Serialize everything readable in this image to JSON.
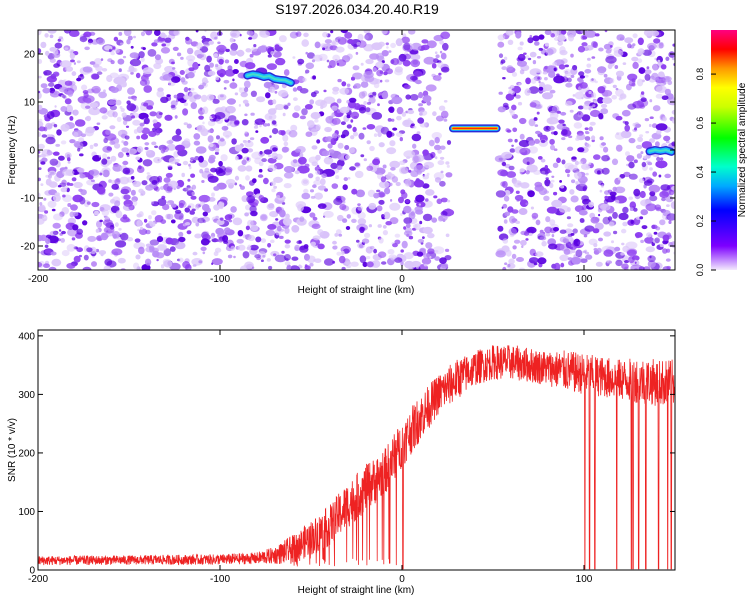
{
  "title": "S197.2026.034.20.40.R19",
  "chart_data": [
    {
      "type": "heatmap",
      "name": "spectrogram",
      "xlabel": "Height of straight line (km)",
      "ylabel": "Frequency (Hz)",
      "xlim": [
        -200,
        150
      ],
      "ylim": [
        -25,
        25
      ],
      "xticks": [
        -200,
        -100,
        0,
        100
      ],
      "yticks": [
        20,
        10,
        0,
        -10,
        -20
      ],
      "ridges": [
        {
          "x": [
            -85,
            -82,
            -79,
            -76,
            -73,
            -70,
            -67,
            -64,
            -61
          ],
          "y": [
            15.5,
            15.8,
            15.6,
            15.2,
            15.4,
            14.8,
            14.6,
            14.5,
            14.0
          ],
          "value": 0.3
        },
        {
          "x": [
            28,
            32,
            36,
            40,
            44,
            48,
            52
          ],
          "y": [
            4.5,
            4.5,
            4.5,
            4.5,
            4.5,
            4.5,
            4.5
          ],
          "value": 0.85
        },
        {
          "x": [
            136,
            139,
            142,
            145,
            148
          ],
          "y": [
            -0.3,
            0,
            -0.2,
            0,
            -0.4
          ],
          "value": 0.35
        }
      ],
      "gaps": [
        [
          -60,
          -62
        ],
        [
          26,
          54
        ]
      ],
      "colorbar": {
        "label": "Normalized spectral amplitude",
        "ticks": [
          0.0,
          0.2,
          0.4,
          0.6,
          0.8
        ],
        "range": [
          0,
          0.98
        ]
      }
    },
    {
      "type": "line",
      "name": "snr",
      "xlabel": "Height of straight line (km)",
      "ylabel": "SNR (10 * v/v)",
      "xlim": [
        -200,
        150
      ],
      "ylim": [
        0,
        410
      ],
      "xticks": [
        -200,
        -100,
        0,
        100
      ],
      "yticks": [
        400,
        300,
        200,
        100,
        0
      ],
      "color": "#ee2222",
      "envelope": {
        "x": [
          -200,
          -150,
          -100,
          -80,
          -70,
          -60,
          -50,
          -40,
          -30,
          -20,
          -10,
          0,
          10,
          20,
          30,
          40,
          50,
          60,
          70,
          80,
          90,
          100,
          110,
          120,
          130,
          140,
          150
        ],
        "mean": [
          16,
          17,
          18,
          20,
          25,
          35,
          55,
          75,
          110,
          140,
          165,
          215,
          260,
          300,
          325,
          345,
          355,
          355,
          350,
          345,
          340,
          335,
          330,
          325,
          325,
          320,
          320
        ],
        "amp": [
          8,
          8,
          9,
          10,
          15,
          25,
          30,
          35,
          40,
          40,
          40,
          40,
          40,
          35,
          35,
          30,
          30,
          30,
          30,
          30,
          35,
          35,
          35,
          35,
          40,
          40,
          40
        ]
      },
      "dropouts": [
        [
          0.5
        ],
        [
          100.5,
          103,
          106,
          118,
          126,
          127,
          130,
          134,
          141,
          146,
          148
        ]
      ]
    }
  ]
}
